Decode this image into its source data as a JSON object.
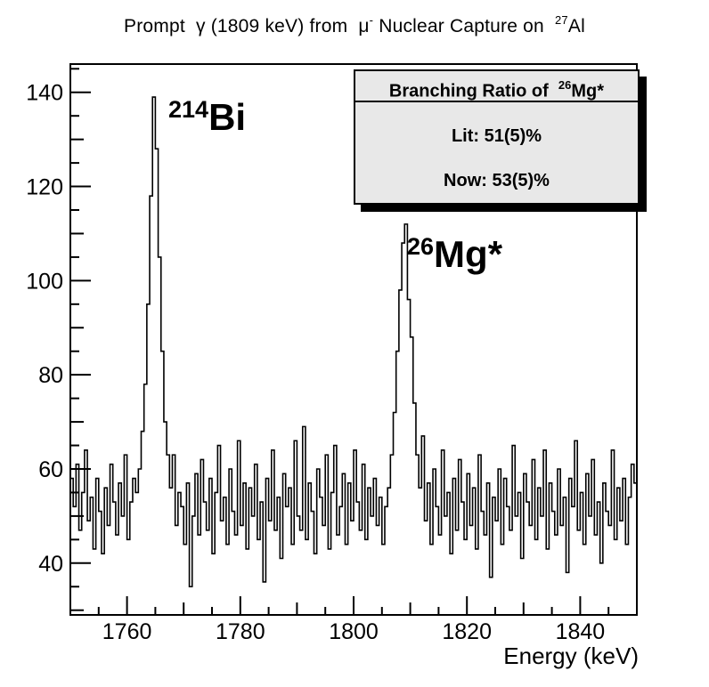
{
  "title": {
    "part1": "Prompt  γ (1809 keV) from  μ",
    "sup1": "-",
    "part2": " Nuclear Capture on  ",
    "sup2": "27",
    "part3": "Al"
  },
  "peak_labels": {
    "bi": {
      "sup": "214",
      "main": "Bi"
    },
    "mg": {
      "sup": "26",
      "main": "Mg*"
    }
  },
  "legend": {
    "title_prefix": "Branching Ratio of  ",
    "title_sup": "26",
    "title_main": "Mg*",
    "lit": "Lit: 51(5)%",
    "now": "Now: 53(5)%"
  },
  "chart_data": {
    "type": "histogram",
    "title": "Prompt γ (1809 keV) from μ- Nuclear Capture on 27Al",
    "xlabel": "Energy (keV)",
    "ylabel": "",
    "xlim": [
      1750,
      1850
    ],
    "ylim": [
      29,
      146
    ],
    "x_major_ticks": [
      1760,
      1780,
      1800,
      1820,
      1840
    ],
    "y_major_ticks": [
      40,
      60,
      80,
      100,
      120,
      140
    ],
    "minor_tick_step_kev": 5,
    "minor_tick_step_counts": 5,
    "grid": false,
    "line_color": "#000000",
    "frame_color": "#000000",
    "legend_fill": "#e8e8e8",
    "bin_start_kev": 1750,
    "bin_width_kev": 0.5,
    "peaks": [
      {
        "isotope": "214Bi",
        "energy_kev": 1764.5,
        "peak_counts": 139
      },
      {
        "isotope": "26Mg*",
        "energy_kev": 1809,
        "peak_counts": 112
      }
    ],
    "bins": [
      58,
      52,
      61,
      47,
      55,
      64,
      49,
      54,
      43,
      58,
      51,
      42,
      56,
      48,
      61,
      53,
      46,
      57,
      50,
      63,
      45,
      53,
      58,
      55,
      60,
      68,
      78,
      95,
      118,
      139,
      128,
      105,
      85,
      70,
      63,
      56,
      63,
      48,
      55,
      52,
      44,
      57,
      35,
      50,
      59,
      46,
      62,
      53,
      47,
      58,
      42,
      55,
      65,
      49,
      54,
      44,
      60,
      51,
      46,
      66,
      48,
      57,
      43,
      56,
      50,
      61,
      45,
      53,
      36,
      58,
      49,
      64,
      47,
      54,
      41,
      59,
      52,
      56,
      44,
      66,
      50,
      47,
      69,
      45,
      57,
      51,
      42,
      60,
      54,
      48,
      63,
      43,
      55,
      65,
      46,
      52,
      59,
      44,
      57,
      49,
      64,
      53,
      47,
      61,
      45,
      56,
      50,
      58,
      48,
      54,
      44,
      52,
      56,
      63,
      72,
      85,
      98,
      108,
      112,
      96,
      88,
      74,
      63,
      56,
      67,
      49,
      57,
      44,
      60,
      52,
      46,
      64,
      50,
      55,
      42,
      58,
      47,
      62,
      53,
      45,
      59,
      48,
      56,
      43,
      63,
      51,
      46,
      57,
      37,
      54,
      49,
      60,
      44,
      58,
      52,
      47,
      65,
      50,
      55,
      41,
      59,
      53,
      48,
      62,
      45,
      56,
      50,
      64,
      43,
      57,
      51,
      46,
      60,
      48,
      54,
      38,
      58,
      52,
      66,
      47,
      55,
      44,
      59,
      50,
      62,
      46,
      53,
      40,
      57,
      51,
      48,
      64,
      45,
      56,
      49,
      58,
      44,
      54,
      61,
      57
    ]
  }
}
